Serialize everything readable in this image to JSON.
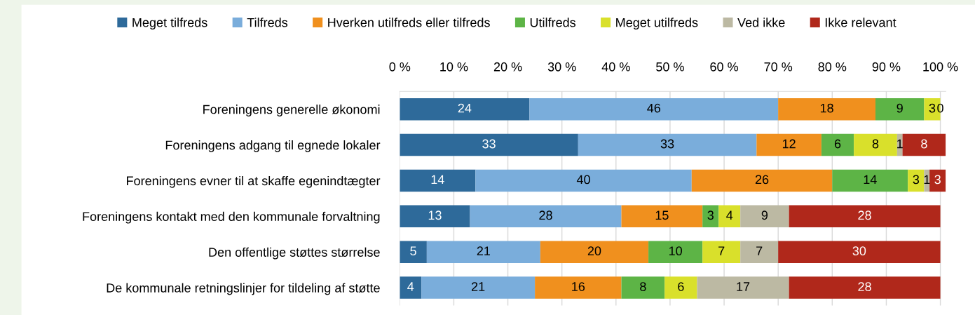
{
  "chart_data": {
    "type": "bar",
    "orientation": "horizontal",
    "stacked": true,
    "categories": [
      "Foreningens generelle økonomi",
      "Foreningens adgang til egnede lokaler",
      "Foreningens evner til at skaffe egenindtægter",
      "Foreningens kontakt med den kommunale forvaltning",
      "Den offentlige støttes størrelse",
      "De kommunale retningslinjer for tildeling af støtte"
    ],
    "series": [
      {
        "name": "Meget tilfreds",
        "color": "#2e6a9a",
        "values": [
          24,
          33,
          14,
          13,
          5,
          4
        ]
      },
      {
        "name": "Tilfreds",
        "color": "#7aaddb",
        "values": [
          46,
          33,
          40,
          28,
          21,
          21
        ]
      },
      {
        "name": "Hverken utilfreds eller tilfreds",
        "color": "#f0901e",
        "values": [
          18,
          12,
          26,
          15,
          20,
          16
        ]
      },
      {
        "name": "Utilfreds",
        "color": "#5db446",
        "values": [
          9,
          6,
          14,
          3,
          10,
          8
        ]
      },
      {
        "name": "Meget utilfreds",
        "color": "#d9e02b",
        "values": [
          3,
          8,
          3,
          4,
          7,
          6
        ]
      },
      {
        "name": "Ved ikke",
        "color": "#bcb9a3",
        "values": [
          0,
          1,
          1,
          9,
          7,
          17
        ],
        "value_labels": [
          null,
          "1",
          "1",
          "9",
          "7",
          "17"
        ]
      },
      {
        "name": "Ikke relevant",
        "color": "#b0281b",
        "values": [
          0,
          8,
          3,
          28,
          30,
          28
        ]
      }
    ],
    "data_labels": true,
    "xlim": [
      0,
      101
    ],
    "xticks": [
      {
        "value": 0,
        "label": "0 %"
      },
      {
        "value": 10,
        "label": "10 %"
      },
      {
        "value": 20,
        "label": "20 %"
      },
      {
        "value": 30,
        "label": "30 %"
      },
      {
        "value": 40,
        "label": "40 %"
      },
      {
        "value": 50,
        "label": "50 %"
      },
      {
        "value": 60,
        "label": "60 %"
      },
      {
        "value": 70,
        "label": "70 %"
      },
      {
        "value": 80,
        "label": "80 %"
      },
      {
        "value": 90,
        "label": "90 %"
      },
      {
        "value": 100,
        "label": "100 %"
      }
    ],
    "grid": "x",
    "legend": "top"
  }
}
